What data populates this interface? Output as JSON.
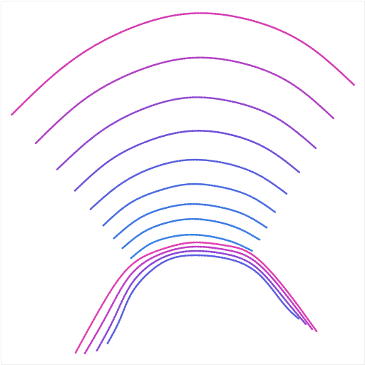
{
  "chart_data": {
    "type": "line",
    "line_style": "dotted",
    "tick_labels": false,
    "grid": false,
    "xlim": [
      0,
      512
    ],
    "ylim": [
      512,
      0
    ],
    "xticks": [],
    "yticks": [],
    "series": [
      {
        "color": "#e040b0",
        "x": [
          105,
          140,
          180,
          225,
          270,
          315,
          355,
          400,
          445
        ],
        "y": [
          495,
          432,
          375,
          350,
          340,
          344,
          358,
          405,
          466
        ]
      },
      {
        "color": "#c03cc4",
        "x": [
          118,
          150,
          183,
          225,
          270,
          315,
          357,
          400,
          438
        ],
        "y": [
          496,
          440,
          385,
          356,
          346,
          350,
          366,
          412,
          462
        ]
      },
      {
        "color": "#8a48d4",
        "x": [
          135,
          160,
          186,
          226,
          270,
          315,
          358,
          398,
          430
        ],
        "y": [
          492,
          445,
          395,
          362,
          352,
          356,
          374,
          418,
          456
        ]
      },
      {
        "color": "#5a5ee0",
        "x": [
          150,
          168,
          188,
          228,
          270,
          315,
          360,
          396,
          420
        ],
        "y": [
          482,
          447,
          405,
          368,
          358,
          362,
          382,
          424,
          448
        ]
      },
      {
        "color": "#d43cb4",
        "x": [
          15,
          85,
          160,
          245,
          330,
          420,
          497
        ],
        "y": [
          160,
          95,
          48,
          20,
          22,
          55,
          118
        ]
      },
      {
        "color": "#b040c4",
        "x": [
          49,
          110,
          176,
          250,
          324,
          402,
          468
        ],
        "y": [
          200,
          144,
          105,
          82,
          84,
          112,
          165
        ]
      },
      {
        "color": "#9048d0",
        "x": [
          79,
          133,
          190,
          254,
          318,
          385,
          443
        ],
        "y": [
          237,
          189,
          156,
          137,
          140,
          163,
          207
        ]
      },
      {
        "color": "#7050d8",
        "x": [
          104,
          151,
          202,
          257,
          313,
          371,
          421
        ],
        "y": [
          267,
          226,
          199,
          184,
          186,
          206,
          242
        ]
      },
      {
        "color": "#5860dc",
        "x": [
          126,
          168,
          213,
          260,
          309,
          359,
          403
        ],
        "y": [
          293,
          258,
          235,
          224,
          227,
          243,
          272
        ]
      },
      {
        "color": "#4a6ce0",
        "x": [
          144,
          181,
          222,
          263,
          305,
          349,
          387
        ],
        "y": [
          316,
          285,
          267,
          258,
          261,
          274,
          298
        ]
      },
      {
        "color": "#3f76e2",
        "x": [
          159,
          193,
          229,
          265,
          302,
          341,
          374
        ],
        "y": [
          334,
          307,
          292,
          286,
          289,
          300,
          319
        ]
      },
      {
        "color": "#3a7ce4",
        "x": [
          171,
          201,
          234,
          266,
          300,
          334,
          364
        ],
        "y": [
          348,
          325,
          312,
          307,
          310,
          320,
          336
        ]
      },
      {
        "color": "#3a80e4",
        "x": [
          183,
          210,
          240,
          268,
          298,
          328,
          354
        ],
        "y": [
          362,
          342,
          332,
          329,
          332,
          340,
          352
        ]
      }
    ]
  }
}
